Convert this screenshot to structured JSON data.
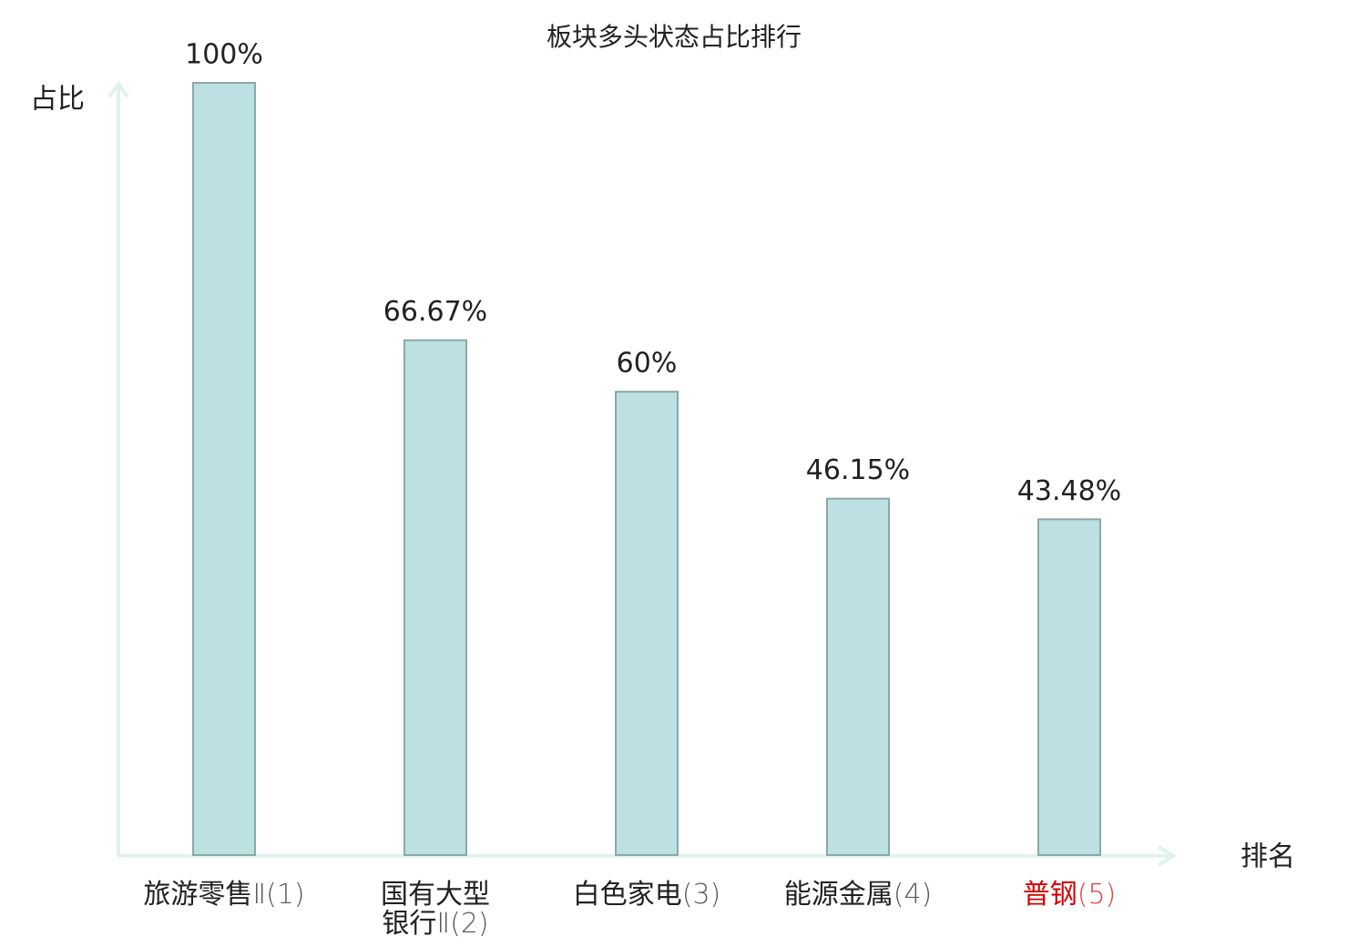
{
  "chart_data": {
    "type": "bar",
    "title": "板块多头状态占比排行",
    "y_label": "占比",
    "x_label": "排名",
    "categories": [
      "旅游零售Ⅱ(1)",
      "国有大型银行Ⅱ(2)",
      "白色家电(3)",
      "能源金属(4)",
      "普钢(5)"
    ],
    "values": [
      100,
      66.67,
      60,
      46.15,
      43.48
    ],
    "value_labels": [
      "100%",
      "66.67%",
      "60%",
      "46.15%",
      "43.48%"
    ],
    "color": "#bde0e2",
    "edge_color": "#8aa8a8",
    "category_colors": [
      "#222222",
      "#222222",
      "#222222",
      "#222222",
      "#d40000"
    ],
    "ylim": [
      0,
      100
    ]
  }
}
